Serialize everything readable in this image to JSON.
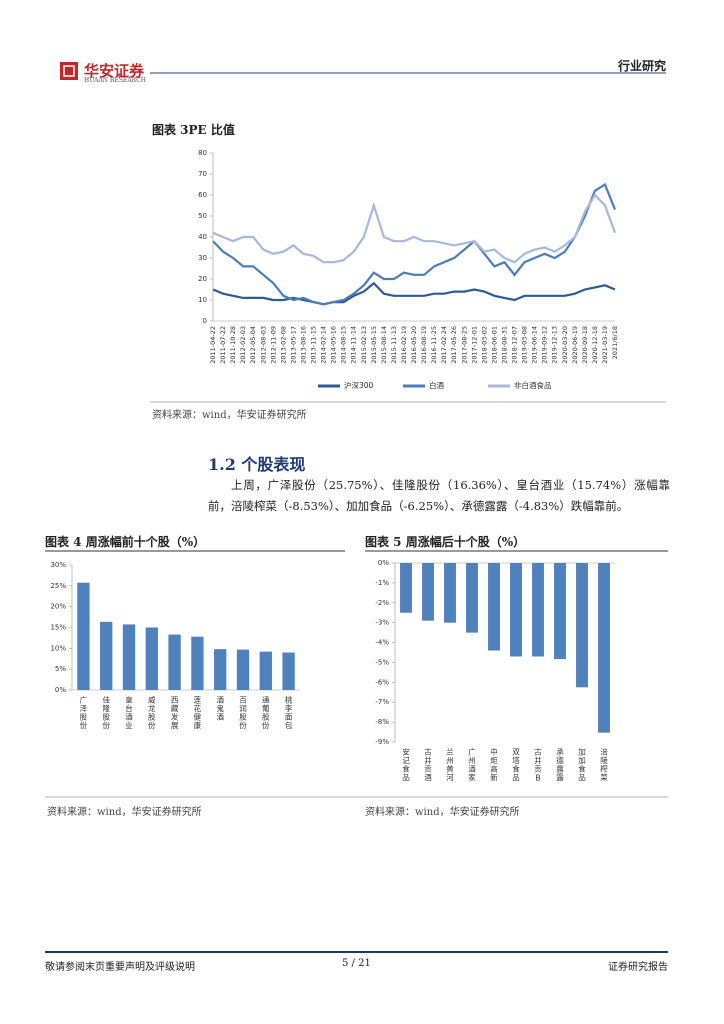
{
  "header": {
    "logo": "华安证券",
    "logo_en": "HUAAN RESEARCH",
    "category": "行业研究"
  },
  "figure3_title": "图表 3PE 比值",
  "figure3_source": "资料来源：wind，华安证券研究所",
  "section_heading": "1.2 个股表现",
  "paragraph": "上周，广泽股份（25.75%）、佳隆股份（16.36%）、皇台酒业（15.74%）涨幅靠前，涪陵榨菜（-8.53%）、加加食品（-6.25%）、承德露露（-4.83%）跌幅靠前。",
  "figure4_title": "图表 4 周涨幅前十个股（%）",
  "figure5_title": "图表 5 周涨幅后十个股（%）",
  "figure4_source": "资料来源：wind，华安证券研究所",
  "figure5_source": "资料来源：wind，华安证券研究所",
  "footer": {
    "disclaimer": "敬请参阅末页重要声明及评级说明",
    "page": "5 / 21",
    "label": "证券研究报告"
  },
  "chart_data": [
    {
      "type": "line",
      "legend": "bottom",
      "categories": [
        "2011-04-22",
        "2011-07-22",
        "2011-10-28",
        "2012-02-03",
        "2012-05-04",
        "2012-08-03",
        "2012-11-09",
        "2013-02-08",
        "2013-05-17",
        "2013-08-16",
        "2013-11-15",
        "2014-02-14",
        "2014-05-16",
        "2014-08-15",
        "2014-11-14",
        "2015-02-13",
        "2015-05-15",
        "2015-08-14",
        "2015-11-13",
        "2016-02-19",
        "2016-05-20",
        "2016-08-19",
        "2016-11-25",
        "2017-02-24",
        "2017-05-26",
        "2017-08-25",
        "2017-12-01",
        "2018-03-02",
        "2018-06-01",
        "2018-08-31",
        "2018-12-07",
        "2019-03-08",
        "2019-06-14",
        "2019-09-12",
        "2019-12-13",
        "2020-03-20",
        "2020-06-19",
        "2020-09-18",
        "2020-12-18",
        "2021-03-19",
        "2021/6/18"
      ],
      "series": [
        {
          "name": "沪深300",
          "color": "#2e5b97",
          "values": [
            15,
            13,
            12,
            11,
            11,
            11,
            10,
            10,
            11,
            10,
            9,
            8,
            9,
            9,
            12,
            14,
            18,
            13,
            12,
            12,
            12,
            12,
            13,
            13,
            14,
            14,
            15,
            14,
            12,
            11,
            10,
            12,
            12,
            12,
            12,
            12,
            13,
            15,
            16,
            17,
            15
          ]
        },
        {
          "name": "白酒",
          "color": "#4a7ebb",
          "values": [
            38,
            33,
            30,
            26,
            26,
            22,
            18,
            12,
            10,
            11,
            9,
            8,
            9,
            10,
            13,
            17,
            23,
            20,
            20,
            23,
            22,
            22,
            26,
            28,
            30,
            34,
            38,
            32,
            26,
            28,
            22,
            28,
            30,
            32,
            30,
            33,
            40,
            50,
            62,
            65,
            53
          ]
        },
        {
          "name": "非白酒食品",
          "color": "#a6b9db",
          "values": [
            42,
            40,
            38,
            40,
            40,
            34,
            32,
            33,
            36,
            32,
            31,
            28,
            28,
            29,
            33,
            40,
            55,
            40,
            38,
            38,
            40,
            38,
            38,
            37,
            36,
            37,
            38,
            33,
            34,
            30,
            28,
            32,
            34,
            35,
            33,
            36,
            40,
            52,
            60,
            55,
            42
          ]
        }
      ],
      "ylim": [
        0,
        80
      ],
      "yticks": [
        0,
        10,
        20,
        30,
        40,
        50,
        60,
        70,
        80
      ]
    },
    {
      "type": "bar",
      "color": "#4f81bd",
      "categories": [
        "广泽股份",
        "佳隆股份",
        "皇台酒业",
        "威龙股份",
        "西藏发展",
        "莲花健康",
        "酒鬼酒",
        "百润股份",
        "通葡股份",
        "桃李面包"
      ],
      "values": [
        25.75,
        16.36,
        15.74,
        15,
        13.3,
        12.8,
        9.8,
        9.7,
        9.2,
        9.0
      ],
      "ylim": [
        0,
        30
      ],
      "yticks": [
        {
          "value": 0,
          "label": "0%"
        },
        {
          "value": 5,
          "label": "5%"
        },
        {
          "value": 10,
          "label": "10%"
        },
        {
          "value": 15,
          "label": "15%"
        },
        {
          "value": 20,
          "label": "20%"
        },
        {
          "value": 25,
          "label": "25%"
        },
        {
          "value": 30,
          "label": "30%"
        }
      ]
    },
    {
      "type": "bar",
      "color": "#4f81bd",
      "categories": [
        "安记食品",
        "古井贡酒",
        "兰州黄河",
        "广州酒家",
        "中炬高新",
        "双塔食品",
        "古井贡B",
        "承德露露",
        "加加食品",
        "涪陵榨菜"
      ],
      "values": [
        -2.5,
        -2.9,
        -3.0,
        -3.5,
        -4.4,
        -4.7,
        -4.7,
        -4.83,
        -6.25,
        -8.53
      ],
      "ylim": [
        -9,
        0
      ],
      "yticks": [
        {
          "value": 0,
          "label": "0%"
        },
        {
          "value": -1,
          "label": "-1%"
        },
        {
          "value": -2,
          "label": "-2%"
        },
        {
          "value": -3,
          "label": "-3%"
        },
        {
          "value": -4,
          "label": "-4%"
        },
        {
          "value": -5,
          "label": "-5%"
        },
        {
          "value": -6,
          "label": "-6%"
        },
        {
          "value": -7,
          "label": "-7%"
        },
        {
          "value": -8,
          "label": "-8%"
        },
        {
          "value": -9,
          "label": "-9%"
        }
      ]
    }
  ]
}
